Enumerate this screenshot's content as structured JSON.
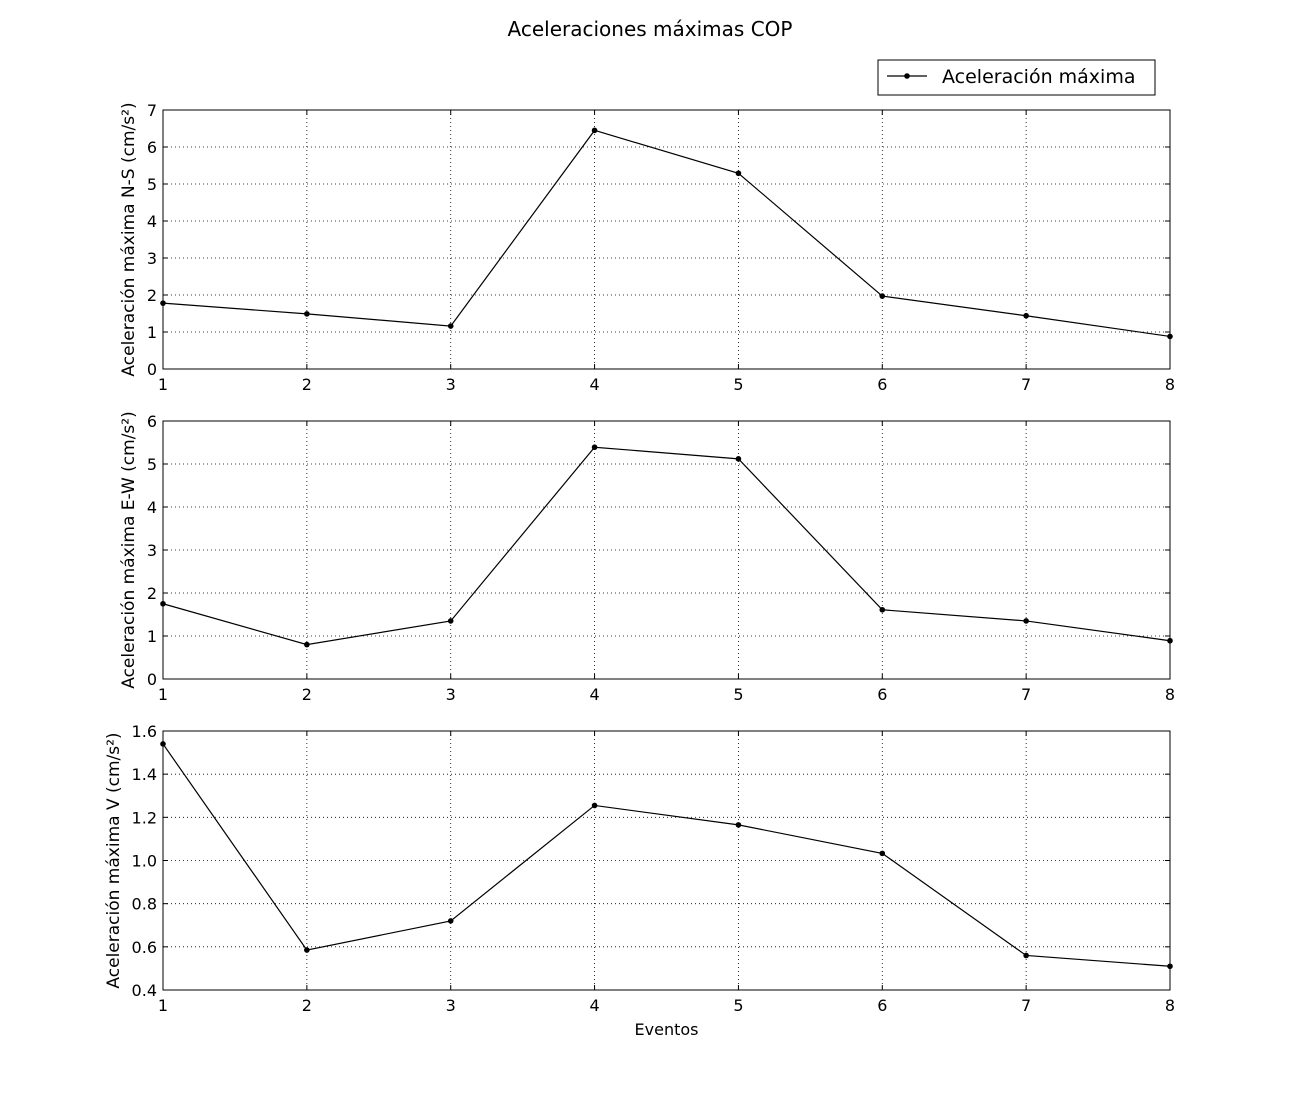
{
  "figure": {
    "title": "Aceleraciones máximas COP",
    "legend": {
      "label": "Aceleración máxima",
      "placement": "top-right"
    },
    "line_color": "#000000",
    "grid": true
  },
  "chart_data": [
    {
      "type": "line",
      "title": "",
      "xlabel": "",
      "ylabel": "Aceleración máxima N-S (cm/s²)",
      "x": [
        1,
        2,
        3,
        4,
        5,
        6,
        7,
        8
      ],
      "series": [
        {
          "name": "Aceleración máxima",
          "values": [
            1.78,
            1.49,
            1.16,
            6.45,
            5.29,
            1.97,
            1.44,
            0.88
          ]
        }
      ],
      "xlim": [
        1,
        8
      ],
      "ylim": [
        0,
        7
      ],
      "yticks": [
        "0",
        "1",
        "2",
        "3",
        "4",
        "5",
        "6",
        "7"
      ],
      "xticks": [
        "1",
        "2",
        "3",
        "4",
        "5",
        "6",
        "7",
        "8"
      ]
    },
    {
      "type": "line",
      "title": "",
      "xlabel": "",
      "ylabel": "Aceleración máxima E-W (cm/s²)",
      "x": [
        1,
        2,
        3,
        4,
        5,
        6,
        7,
        8
      ],
      "series": [
        {
          "name": "Aceleración máxima",
          "values": [
            1.75,
            0.8,
            1.35,
            5.39,
            5.12,
            1.61,
            1.35,
            0.89
          ]
        }
      ],
      "xlim": [
        1,
        8
      ],
      "ylim": [
        0,
        6
      ],
      "yticks": [
        "0",
        "1",
        "2",
        "3",
        "4",
        "5",
        "6"
      ],
      "xticks": [
        "1",
        "2",
        "3",
        "4",
        "5",
        "6",
        "7",
        "8"
      ]
    },
    {
      "type": "line",
      "title": "",
      "xlabel": "Eventos",
      "ylabel": "Aceleración máxima V (cm/s²)",
      "x": [
        1,
        2,
        3,
        4,
        5,
        6,
        7,
        8
      ],
      "series": [
        {
          "name": "Aceleración máxima",
          "values": [
            1.54,
            0.585,
            0.72,
            1.255,
            1.165,
            1.033,
            0.56,
            0.51
          ]
        }
      ],
      "xlim": [
        1,
        8
      ],
      "ylim": [
        0.4,
        1.6
      ],
      "yticks": [
        "0.4",
        "0.6",
        "0.8",
        "1.0",
        "1.2",
        "1.4",
        "1.6"
      ],
      "xticks": [
        "1",
        "2",
        "3",
        "4",
        "5",
        "6",
        "7",
        "8"
      ]
    }
  ]
}
